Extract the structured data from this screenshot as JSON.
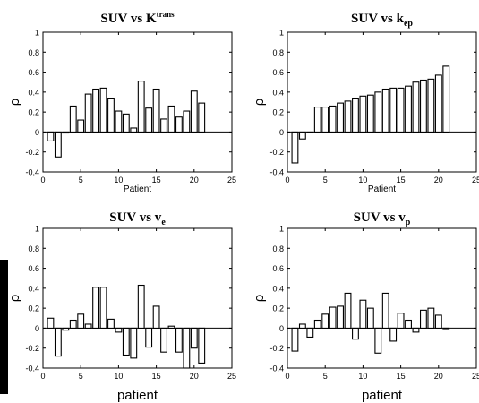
{
  "chart_data": [
    {
      "type": "bar",
      "title_main": "SUV vs K",
      "title_sup": "trans",
      "title_sub": "",
      "xlabel": "Patient",
      "ylabel": "ρ",
      "xlim": [
        0,
        25
      ],
      "ylim": [
        -0.4,
        1
      ],
      "xticks": [
        "0",
        "5",
        "10",
        "15",
        "20",
        "25"
      ],
      "yticks": [
        "-0.4",
        "-0.2",
        "0",
        "0.2",
        "0.4",
        "0.6",
        "0.8",
        "1"
      ],
      "x": [
        1,
        2,
        3,
        4,
        5,
        6,
        7,
        8,
        9,
        10,
        11,
        12,
        13,
        14,
        15,
        16,
        17,
        18,
        19,
        20,
        21
      ],
      "values": [
        -0.09,
        -0.25,
        -0.01,
        0.26,
        0.12,
        0.38,
        0.43,
        0.44,
        0.34,
        0.21,
        0.18,
        0.04,
        0.51,
        0.24,
        0.43,
        0.13,
        0.26,
        0.15,
        0.21,
        0.41,
        0.29
      ]
    },
    {
      "type": "bar",
      "title_main": "SUV vs k",
      "title_sup": "",
      "title_sub": "ep",
      "xlabel": "Patient",
      "ylabel": "ρ",
      "xlim": [
        0,
        25
      ],
      "ylim": [
        -0.4,
        1
      ],
      "xticks": [
        "0",
        "5",
        "10",
        "15",
        "20",
        "25"
      ],
      "yticks": [
        "-0.4",
        "-0.2",
        "0",
        "0.2",
        "0.4",
        "0.6",
        "0.8",
        "1"
      ],
      "x": [
        1,
        2,
        3,
        4,
        5,
        6,
        7,
        8,
        9,
        10,
        11,
        12,
        13,
        14,
        15,
        16,
        17,
        18,
        19,
        20,
        21
      ],
      "values": [
        -0.31,
        -0.07,
        0.0,
        0.25,
        0.25,
        0.26,
        0.29,
        0.31,
        0.34,
        0.36,
        0.37,
        0.4,
        0.43,
        0.44,
        0.44,
        0.46,
        0.5,
        0.52,
        0.53,
        0.57,
        0.66
      ]
    },
    {
      "type": "bar",
      "title_main": "SUV vs v",
      "title_sup": "",
      "title_sub": "e",
      "xlabel": "patient",
      "ylabel": "ρ",
      "xlim": [
        0,
        25
      ],
      "ylim": [
        -0.4,
        1
      ],
      "xticks": [
        "0",
        "5",
        "10",
        "15",
        "20",
        "25"
      ],
      "yticks": [
        "-0.4",
        "-0.2",
        "0",
        "0.2",
        "0.4",
        "0.6",
        "0.8",
        "1"
      ],
      "x": [
        1,
        2,
        3,
        4,
        5,
        6,
        7,
        8,
        9,
        10,
        11,
        12,
        13,
        14,
        15,
        16,
        17,
        18,
        19,
        20,
        21
      ],
      "values": [
        0.1,
        -0.28,
        -0.02,
        0.08,
        0.14,
        0.04,
        0.41,
        0.41,
        0.09,
        -0.04,
        -0.27,
        -0.3,
        0.43,
        -0.19,
        0.22,
        -0.24,
        0.02,
        -0.24,
        -0.4,
        -0.2,
        -0.35
      ]
    },
    {
      "type": "bar",
      "title_main": "SUV vs v",
      "title_sup": "",
      "title_sub": "p",
      "xlabel": "patient",
      "ylabel": "ρ",
      "xlim": [
        0,
        25
      ],
      "ylim": [
        -0.4,
        1
      ],
      "xticks": [
        "0",
        "5",
        "10",
        "15",
        "20",
        "25"
      ],
      "yticks": [
        "-0.4",
        "-0.2",
        "0",
        "0.2",
        "0.4",
        "0.6",
        "0.8",
        "1"
      ],
      "x": [
        1,
        2,
        3,
        4,
        5,
        6,
        7,
        8,
        9,
        10,
        11,
        12,
        13,
        14,
        15,
        16,
        17,
        18,
        19,
        20,
        21
      ],
      "values": [
        -0.23,
        0.04,
        -0.09,
        0.08,
        0.14,
        0.21,
        0.22,
        0.35,
        -0.11,
        0.28,
        0.2,
        -0.25,
        0.35,
        -0.13,
        0.15,
        0.08,
        -0.04,
        0.18,
        0.2,
        0.13,
        0.0
      ]
    }
  ]
}
